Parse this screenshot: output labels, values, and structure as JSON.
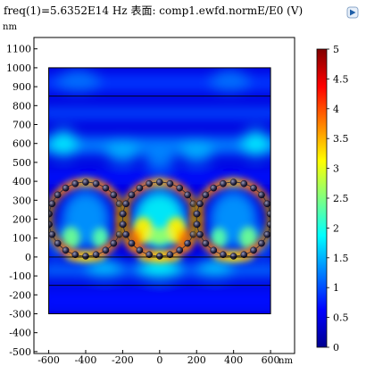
{
  "header": {
    "title": "freq(1)=5.6352E14 Hz 表面: comp1.ewfd.normE/E0 (V)",
    "export_icon": "export-image-icon"
  },
  "chart_data": {
    "type": "heatmap",
    "title": "freq(1)=5.6352E14 Hz 表面: comp1.ewfd.normE/E0 (V)",
    "x_unit": "nm",
    "y_unit": "nm",
    "xlim": [
      -680,
      730
    ],
    "ylim": [
      -510,
      1160
    ],
    "x_ticks": [
      -600,
      -400,
      -200,
      0,
      200,
      400,
      600
    ],
    "y_ticks": [
      1100,
      1000,
      900,
      800,
      700,
      600,
      500,
      400,
      300,
      200,
      100,
      0,
      -100,
      -200,
      -300,
      -400,
      -500
    ],
    "domain": {
      "x": [
        -600,
        600
      ],
      "y": [
        -300,
        1000
      ]
    },
    "boundary_lines_y": [
      850,
      0,
      -150
    ],
    "rings": [
      {
        "cx": -400,
        "cy": 200,
        "r": 200,
        "beads": 22
      },
      {
        "cx": 0,
        "cy": 200,
        "r": 200,
        "beads": 22
      },
      {
        "cx": 400,
        "cy": 200,
        "r": 200,
        "beads": 22
      }
    ],
    "colorbar": {
      "min": 0,
      "max": 5,
      "ticks": [
        0,
        0.5,
        1,
        1.5,
        2,
        2.5,
        3,
        3.5,
        4,
        4.5,
        5
      ],
      "colors": [
        "#00008f",
        "#0000ff",
        "#0080ff",
        "#00ffff",
        "#80ff80",
        "#ffff00",
        "#ff8000",
        "#ff0000",
        "#800000"
      ]
    }
  }
}
